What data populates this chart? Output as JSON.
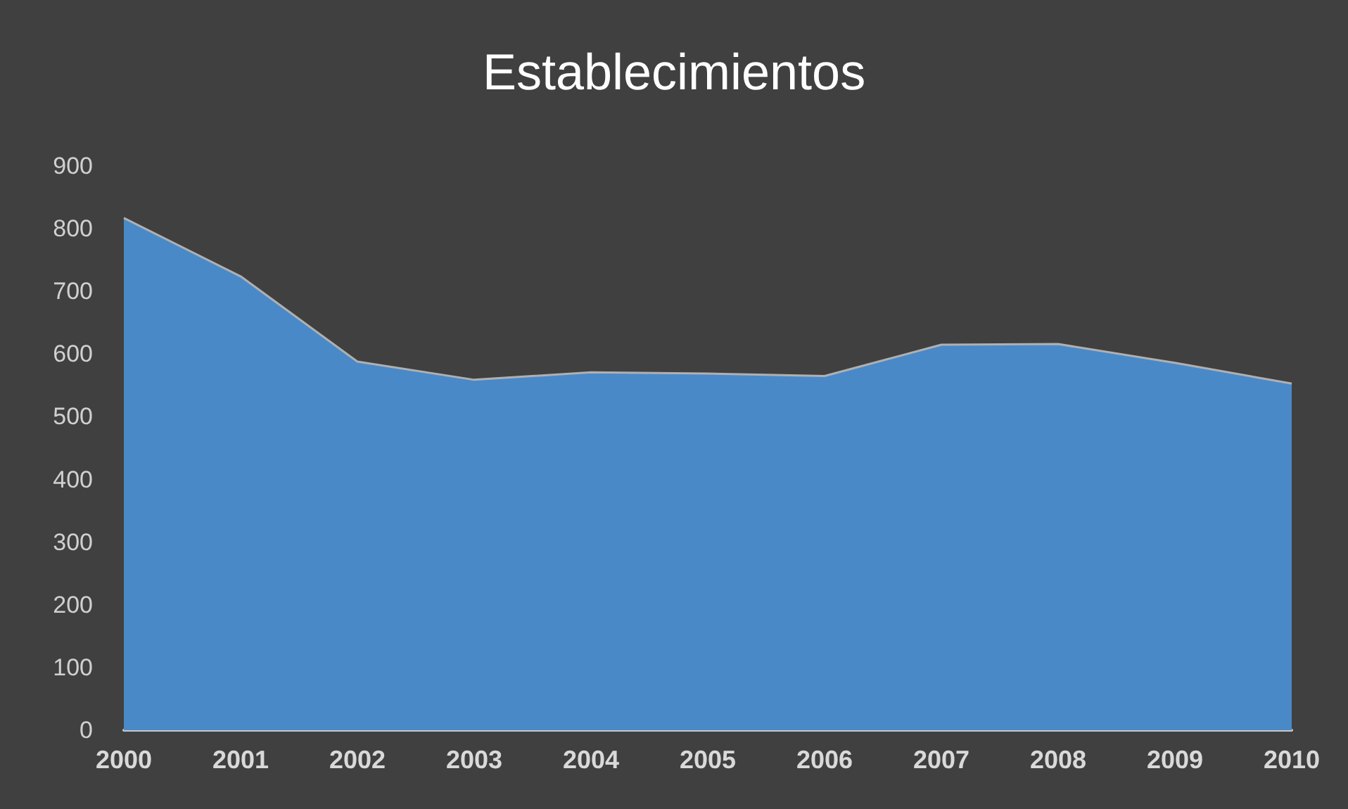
{
  "chart_data": {
    "type": "area",
    "title": "Establecimientos",
    "categories": [
      "2000",
      "2001",
      "2002",
      "2003",
      "2004",
      "2005",
      "2006",
      "2007",
      "2008",
      "2009",
      "2010"
    ],
    "series": [
      {
        "color": "#4a89c8",
        "values": [
          817,
          724,
          588,
          559,
          571,
          569,
          565,
          615,
          616,
          586,
          553
        ]
      }
    ],
    "ylim": [
      0,
      900
    ],
    "yticks": [
      0,
      100,
      200,
      300,
      400,
      500,
      600,
      700,
      800,
      900
    ],
    "grid": false
  }
}
